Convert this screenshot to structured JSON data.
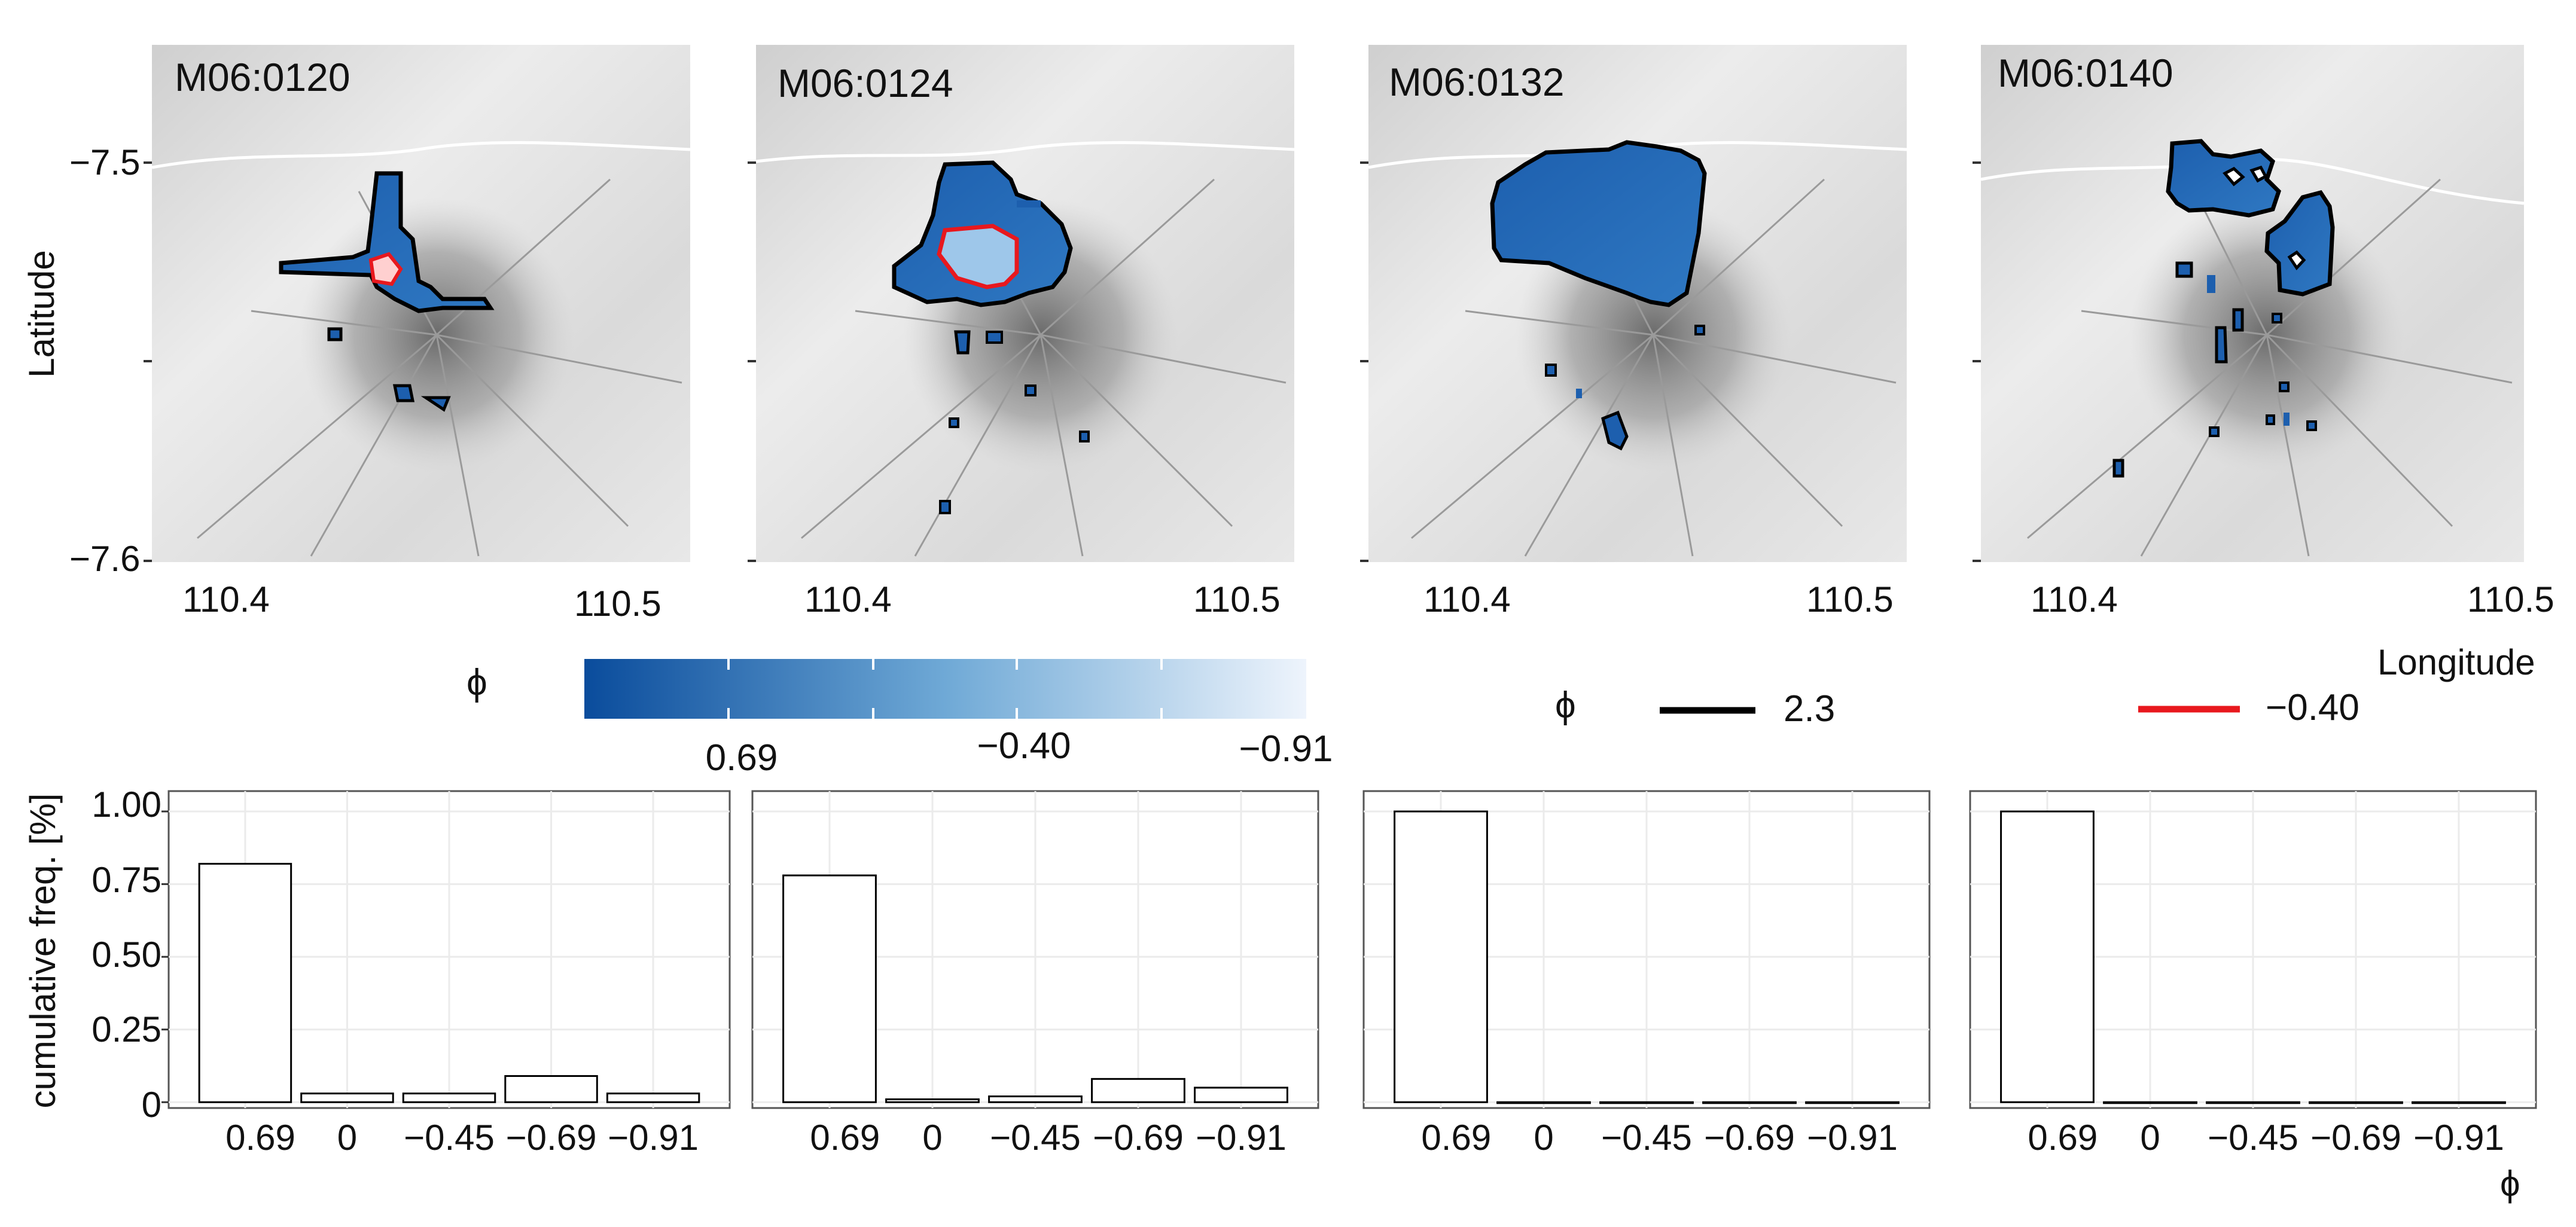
{
  "figure": {
    "ylabel_maps": "Latitude",
    "xlabel_maps": "Longitude",
    "ylabel_bars": "cumulative freq. [%]",
    "xlabel_bars": "ϕ",
    "legend": {
      "fill_title": "ϕ",
      "fill_labels": [
        "0.69",
        "−0.40",
        "−0.91"
      ],
      "line_title": "ϕ",
      "line_high_label": "2.3",
      "line_low_label": "−0.40",
      "colors": {
        "fill_dark": "#0a4c9c",
        "fill_mid": "#6fa9d6",
        "fill_light": "#eef4fc",
        "line_high": "#000000",
        "line_low": "#e8181e"
      }
    }
  },
  "chart_data": [
    {
      "type": "map",
      "title": "M06:0120",
      "xticks": [
        "110.4",
        "110.5"
      ],
      "yticks": [
        "−7.5",
        "−7.6"
      ]
    },
    {
      "type": "map",
      "title": "M06:0124",
      "xticks": [
        "110.4",
        "110.5"
      ]
    },
    {
      "type": "map",
      "title": "M06:0132",
      "xticks": [
        "110.4",
        "110.5"
      ]
    },
    {
      "type": "map",
      "title": "M06:0140",
      "xticks": [
        "110.4",
        "110.5"
      ]
    },
    {
      "type": "bar",
      "categories": [
        "0.69",
        "0",
        "−0.45",
        "−0.69",
        "−0.91"
      ],
      "values": [
        0.82,
        0.03,
        0.03,
        0.09,
        0.03
      ],
      "ylim": [
        -0.02,
        1.07
      ],
      "yticks": [
        "0",
        "0.25",
        "0.50",
        "0.75",
        "1.00"
      ]
    },
    {
      "type": "bar",
      "categories": [
        "0.69",
        "0",
        "−0.45",
        "−0.69",
        "−0.91"
      ],
      "values": [
        0.78,
        0.01,
        0.02,
        0.08,
        0.05
      ],
      "ylim": [
        -0.02,
        1.07
      ]
    },
    {
      "type": "bar",
      "categories": [
        "0.69",
        "0",
        "−0.45",
        "−0.69",
        "−0.91"
      ],
      "values": [
        1.0,
        0.0,
        0.0,
        0.0,
        0.0
      ],
      "ylim": [
        -0.02,
        1.07
      ]
    },
    {
      "type": "bar",
      "categories": [
        "0.69",
        "0",
        "−0.45",
        "−0.69",
        "−0.91"
      ],
      "values": [
        1.0,
        0.0,
        0.0,
        0.0,
        0.0
      ],
      "ylim": [
        -0.02,
        1.07
      ]
    }
  ]
}
